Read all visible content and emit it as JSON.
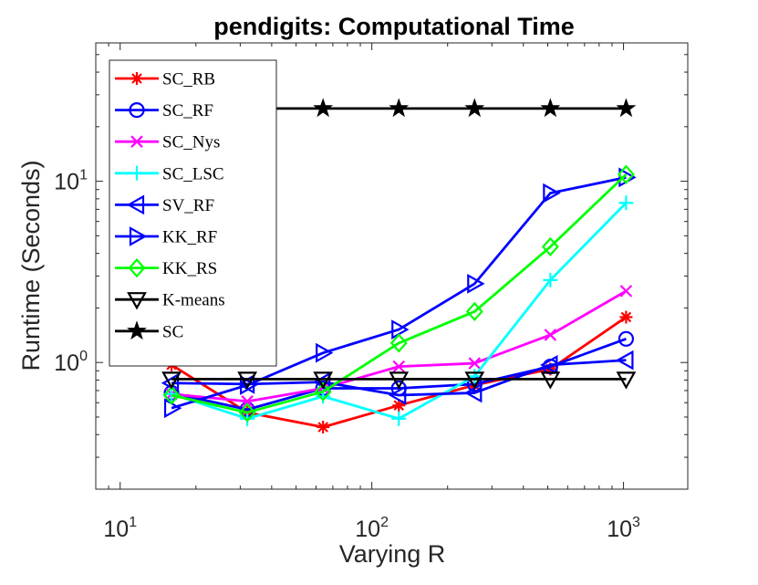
{
  "chart_data": {
    "type": "line",
    "title": "pendigits: Computational Time",
    "xlabel": "Varying R",
    "ylabel": "Runtime (Seconds)",
    "xscale": "log",
    "yscale": "log",
    "xlim": [
      8,
      1800
    ],
    "ylim": [
      0.2,
      58
    ],
    "x_ticks": [
      {
        "value": 10,
        "base": "10",
        "exp": "1"
      },
      {
        "value": 100,
        "base": "10",
        "exp": "2"
      },
      {
        "value": 1000,
        "base": "10",
        "exp": "3"
      }
    ],
    "y_ticks": [
      {
        "value": 1,
        "base": "10",
        "exp": "0"
      },
      {
        "value": 10,
        "base": "10",
        "exp": "1"
      }
    ],
    "legend_position": "top-left",
    "x": [
      16,
      32,
      64,
      128,
      256,
      512,
      1024
    ],
    "series": [
      {
        "name": "SC_RB",
        "label": "SC_RB",
        "color": "#ff0000",
        "marker": "asterisk",
        "values": [
          0.97,
          0.53,
          0.44,
          0.58,
          0.75,
          0.92,
          1.78
        ]
      },
      {
        "name": "SC_RF",
        "label": "SC_RF",
        "color": "#0000ff",
        "marker": "circle",
        "values": [
          0.68,
          0.55,
          0.72,
          0.72,
          0.76,
          0.95,
          1.35
        ]
      },
      {
        "name": "SC_Nys",
        "label": "SC_Nys",
        "color": "#ff00ff",
        "marker": "x",
        "values": [
          0.67,
          0.61,
          0.72,
          0.95,
          0.99,
          1.42,
          2.48
        ]
      },
      {
        "name": "SC_LSC",
        "label": "SC_LSC",
        "color": "#00ffff",
        "marker": "plus",
        "values": [
          0.67,
          0.49,
          0.65,
          0.49,
          0.84,
          2.85,
          7.6
        ]
      },
      {
        "name": "SV_RF",
        "label": "SV_RF",
        "color": "#0000ff",
        "marker": "triangle-left",
        "values": [
          0.77,
          0.76,
          0.78,
          0.66,
          0.68,
          0.97,
          1.03
        ]
      },
      {
        "name": "KK_RF",
        "label": "KK_RF",
        "color": "#0000ff",
        "marker": "triangle-right",
        "values": [
          0.56,
          0.75,
          1.13,
          1.52,
          2.72,
          8.6,
          10.5
        ]
      },
      {
        "name": "KK_RS",
        "label": "KK_RS",
        "color": "#00ff00",
        "marker": "diamond",
        "values": [
          0.66,
          0.53,
          0.69,
          1.28,
          1.91,
          4.35,
          10.9
        ]
      },
      {
        "name": "K-means",
        "label": "K-means",
        "color": "#000000",
        "marker": "triangle-down",
        "values": [
          0.81,
          0.81,
          0.81,
          0.81,
          0.81,
          0.81,
          0.81
        ]
      },
      {
        "name": "SC",
        "label": "SC",
        "color": "#000000",
        "marker": "star",
        "values": [
          25.2,
          25.2,
          25.2,
          25.2,
          25.2,
          25.2,
          25.2
        ]
      }
    ]
  }
}
